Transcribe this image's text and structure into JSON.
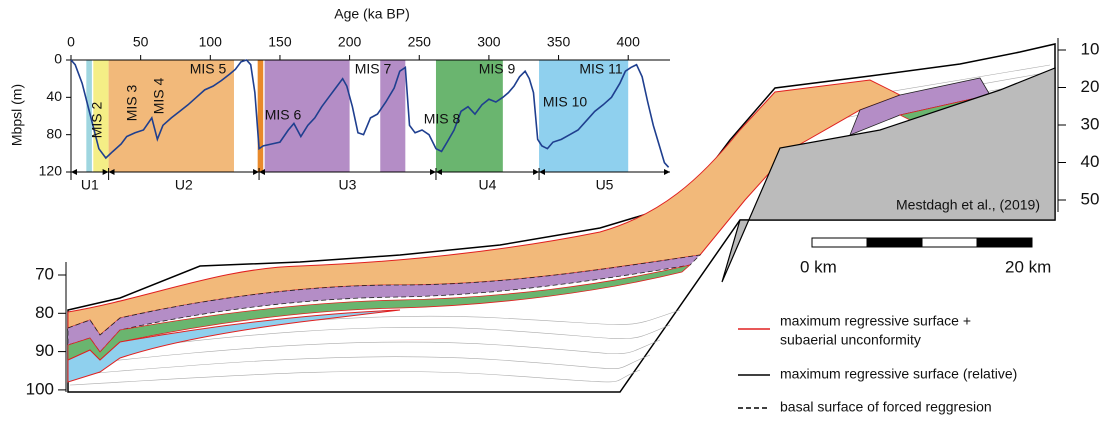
{
  "chart_data": {
    "type": "line",
    "x_label": "Age (ka BP)",
    "y_label": "Mbpsl (m)",
    "xlim": [
      0,
      430
    ],
    "xticks": [
      0,
      50,
      100,
      150,
      200,
      250,
      300,
      350,
      400
    ],
    "ylim": [
      0,
      120
    ],
    "yticks": [
      0,
      40,
      80,
      120
    ],
    "y_inverted": true,
    "series": [
      {
        "color": "#1f3f8f",
        "x": [
          0,
          3,
          8,
          14,
          20,
          25,
          30,
          36,
          40,
          46,
          52,
          58,
          62,
          66,
          72,
          78,
          84,
          90,
          96,
          102,
          108,
          114,
          118,
          122,
          126,
          129,
          132,
          135,
          138,
          144,
          150,
          156,
          160,
          165,
          170,
          175,
          180,
          185,
          190,
          195,
          198,
          202,
          206,
          210,
          215,
          220,
          226,
          232,
          236,
          240,
          243,
          247,
          252,
          257,
          262,
          266,
          270,
          275,
          280,
          285,
          290,
          295,
          300,
          305,
          310,
          314,
          318,
          322,
          326,
          329,
          332,
          335,
          338,
          342,
          346,
          352,
          358,
          364,
          370,
          376,
          382,
          388,
          394,
          398,
          402,
          406,
          410,
          414,
          418,
          422,
          426,
          429
        ],
        "values": [
          0,
          5,
          25,
          60,
          95,
          105,
          98,
          90,
          82,
          78,
          75,
          62,
          85,
          70,
          62,
          55,
          48,
          40,
          32,
          28,
          22,
          15,
          10,
          2,
          0,
          5,
          35,
          95,
          92,
          90,
          88,
          75,
          68,
          82,
          70,
          62,
          50,
          40,
          30,
          20,
          28,
          50,
          78,
          80,
          62,
          58,
          45,
          30,
          12,
          8,
          70,
          78,
          75,
          80,
          95,
          98,
          88,
          75,
          55,
          50,
          58,
          48,
          42,
          45,
          40,
          35,
          28,
          18,
          12,
          20,
          35,
          85,
          92,
          95,
          88,
          85,
          80,
          75,
          65,
          55,
          48,
          40,
          25,
          12,
          8,
          5,
          18,
          45,
          70,
          90,
          110,
          115
        ]
      }
    ],
    "bands": [
      {
        "start": 11,
        "end": 15,
        "color": "#9fd6e0"
      },
      {
        "start": 16,
        "end": 27,
        "color": "#f4ee86"
      },
      {
        "start": 27,
        "end": 117,
        "color": "#f2b97a"
      },
      {
        "start": 134,
        "end": 138,
        "color": "#e8892a"
      },
      {
        "start": 139,
        "end": 200,
        "color": "#b48dc6"
      },
      {
        "start": 222,
        "end": 240,
        "color": "#b48dc6"
      },
      {
        "start": 262,
        "end": 310,
        "color": "#6ab56f"
      },
      {
        "start": 336,
        "end": 400,
        "color": "#8fd0ee"
      }
    ],
    "stage_labels": [
      "MIS 2",
      "MIS 3",
      "MIS 4",
      "MIS 5",
      "MIS 6",
      "MIS 7",
      "MIS 8",
      "MIS 9",
      "MIS 10",
      "MIS 11"
    ],
    "units": [
      {
        "name": "U1",
        "start": 0,
        "end": 27
      },
      {
        "name": "U2",
        "start": 27,
        "end": 135
      },
      {
        "name": "U3",
        "start": 135,
        "end": 262
      },
      {
        "name": "U4",
        "start": 262,
        "end": 336
      },
      {
        "name": "U5",
        "start": 336,
        "end": 430
      }
    ]
  },
  "section": {
    "left_ticks": [
      70,
      80,
      90,
      100
    ],
    "left_lim": [
      65,
      101
    ],
    "right_ticks": [
      10,
      20,
      30,
      40,
      50
    ],
    "right_lim": [
      5,
      55
    ],
    "citation": "Mestdagh et al., (2019)",
    "scale_start": "0 km",
    "scale_end": "20 km",
    "legend": [
      {
        "label": "maximum regressive surface +",
        "label2": "subaerial unconformity",
        "color": "#e02020",
        "dash": false
      },
      {
        "label": "maximum regressive surface (relative)",
        "color": "#000000",
        "dash": false
      },
      {
        "label": "basal surface of forced reggresion",
        "color": "#000000",
        "dash": true
      }
    ]
  }
}
